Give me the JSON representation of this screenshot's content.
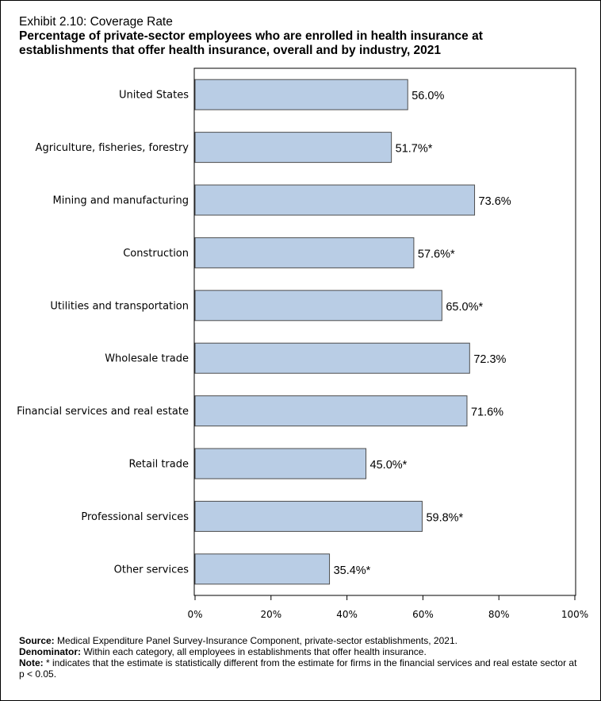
{
  "title": {
    "line1": "Exhibit 2.10: Coverage Rate",
    "line2": "Percentage of private-sector employees who are enrolled in health insurance at",
    "line3": "establishments that offer health insurance, overall and by industry, 2021"
  },
  "chart_data": {
    "type": "bar",
    "orientation": "horizontal",
    "categories": [
      "United States",
      "Agriculture, fisheries, forestry",
      "Mining and manufacturing",
      "Construction",
      "Utilities and transportation",
      "Wholesale trade",
      "Financial services and real estate",
      "Retail trade",
      "Professional services",
      "Other services"
    ],
    "values": [
      56.0,
      51.7,
      73.6,
      57.6,
      65.0,
      72.3,
      71.6,
      45.0,
      59.8,
      35.4
    ],
    "data_labels": [
      "56.0%",
      "51.7%*",
      "73.6%",
      "57.6%*",
      "65.0%*",
      "72.3%",
      "71.6%",
      "45.0%*",
      "59.8%*",
      "35.4%*"
    ],
    "xlim": [
      0,
      100
    ],
    "xticks": [
      0,
      20,
      40,
      60,
      80,
      100
    ],
    "xtick_labels": [
      "0%",
      "20%",
      "40%",
      "60%",
      "80%",
      "100%"
    ],
    "grid": false,
    "bar_color": "#b9cde5",
    "bar_edge_color": "#4d4d4d"
  },
  "notes": {
    "source_label": "Source:",
    "source_text": " Medical Expenditure Panel Survey-Insurance Component, private-sector establishments, 2021.",
    "denominator_label": "Denominator:",
    "denominator_text": " Within each category, all employees in establishments that offer health insurance.",
    "note_label": "Note:",
    "note_text": "  * indicates that the estimate is statistically different from the estimate for firms in the financial services and real estate sector at p < 0.05."
  }
}
